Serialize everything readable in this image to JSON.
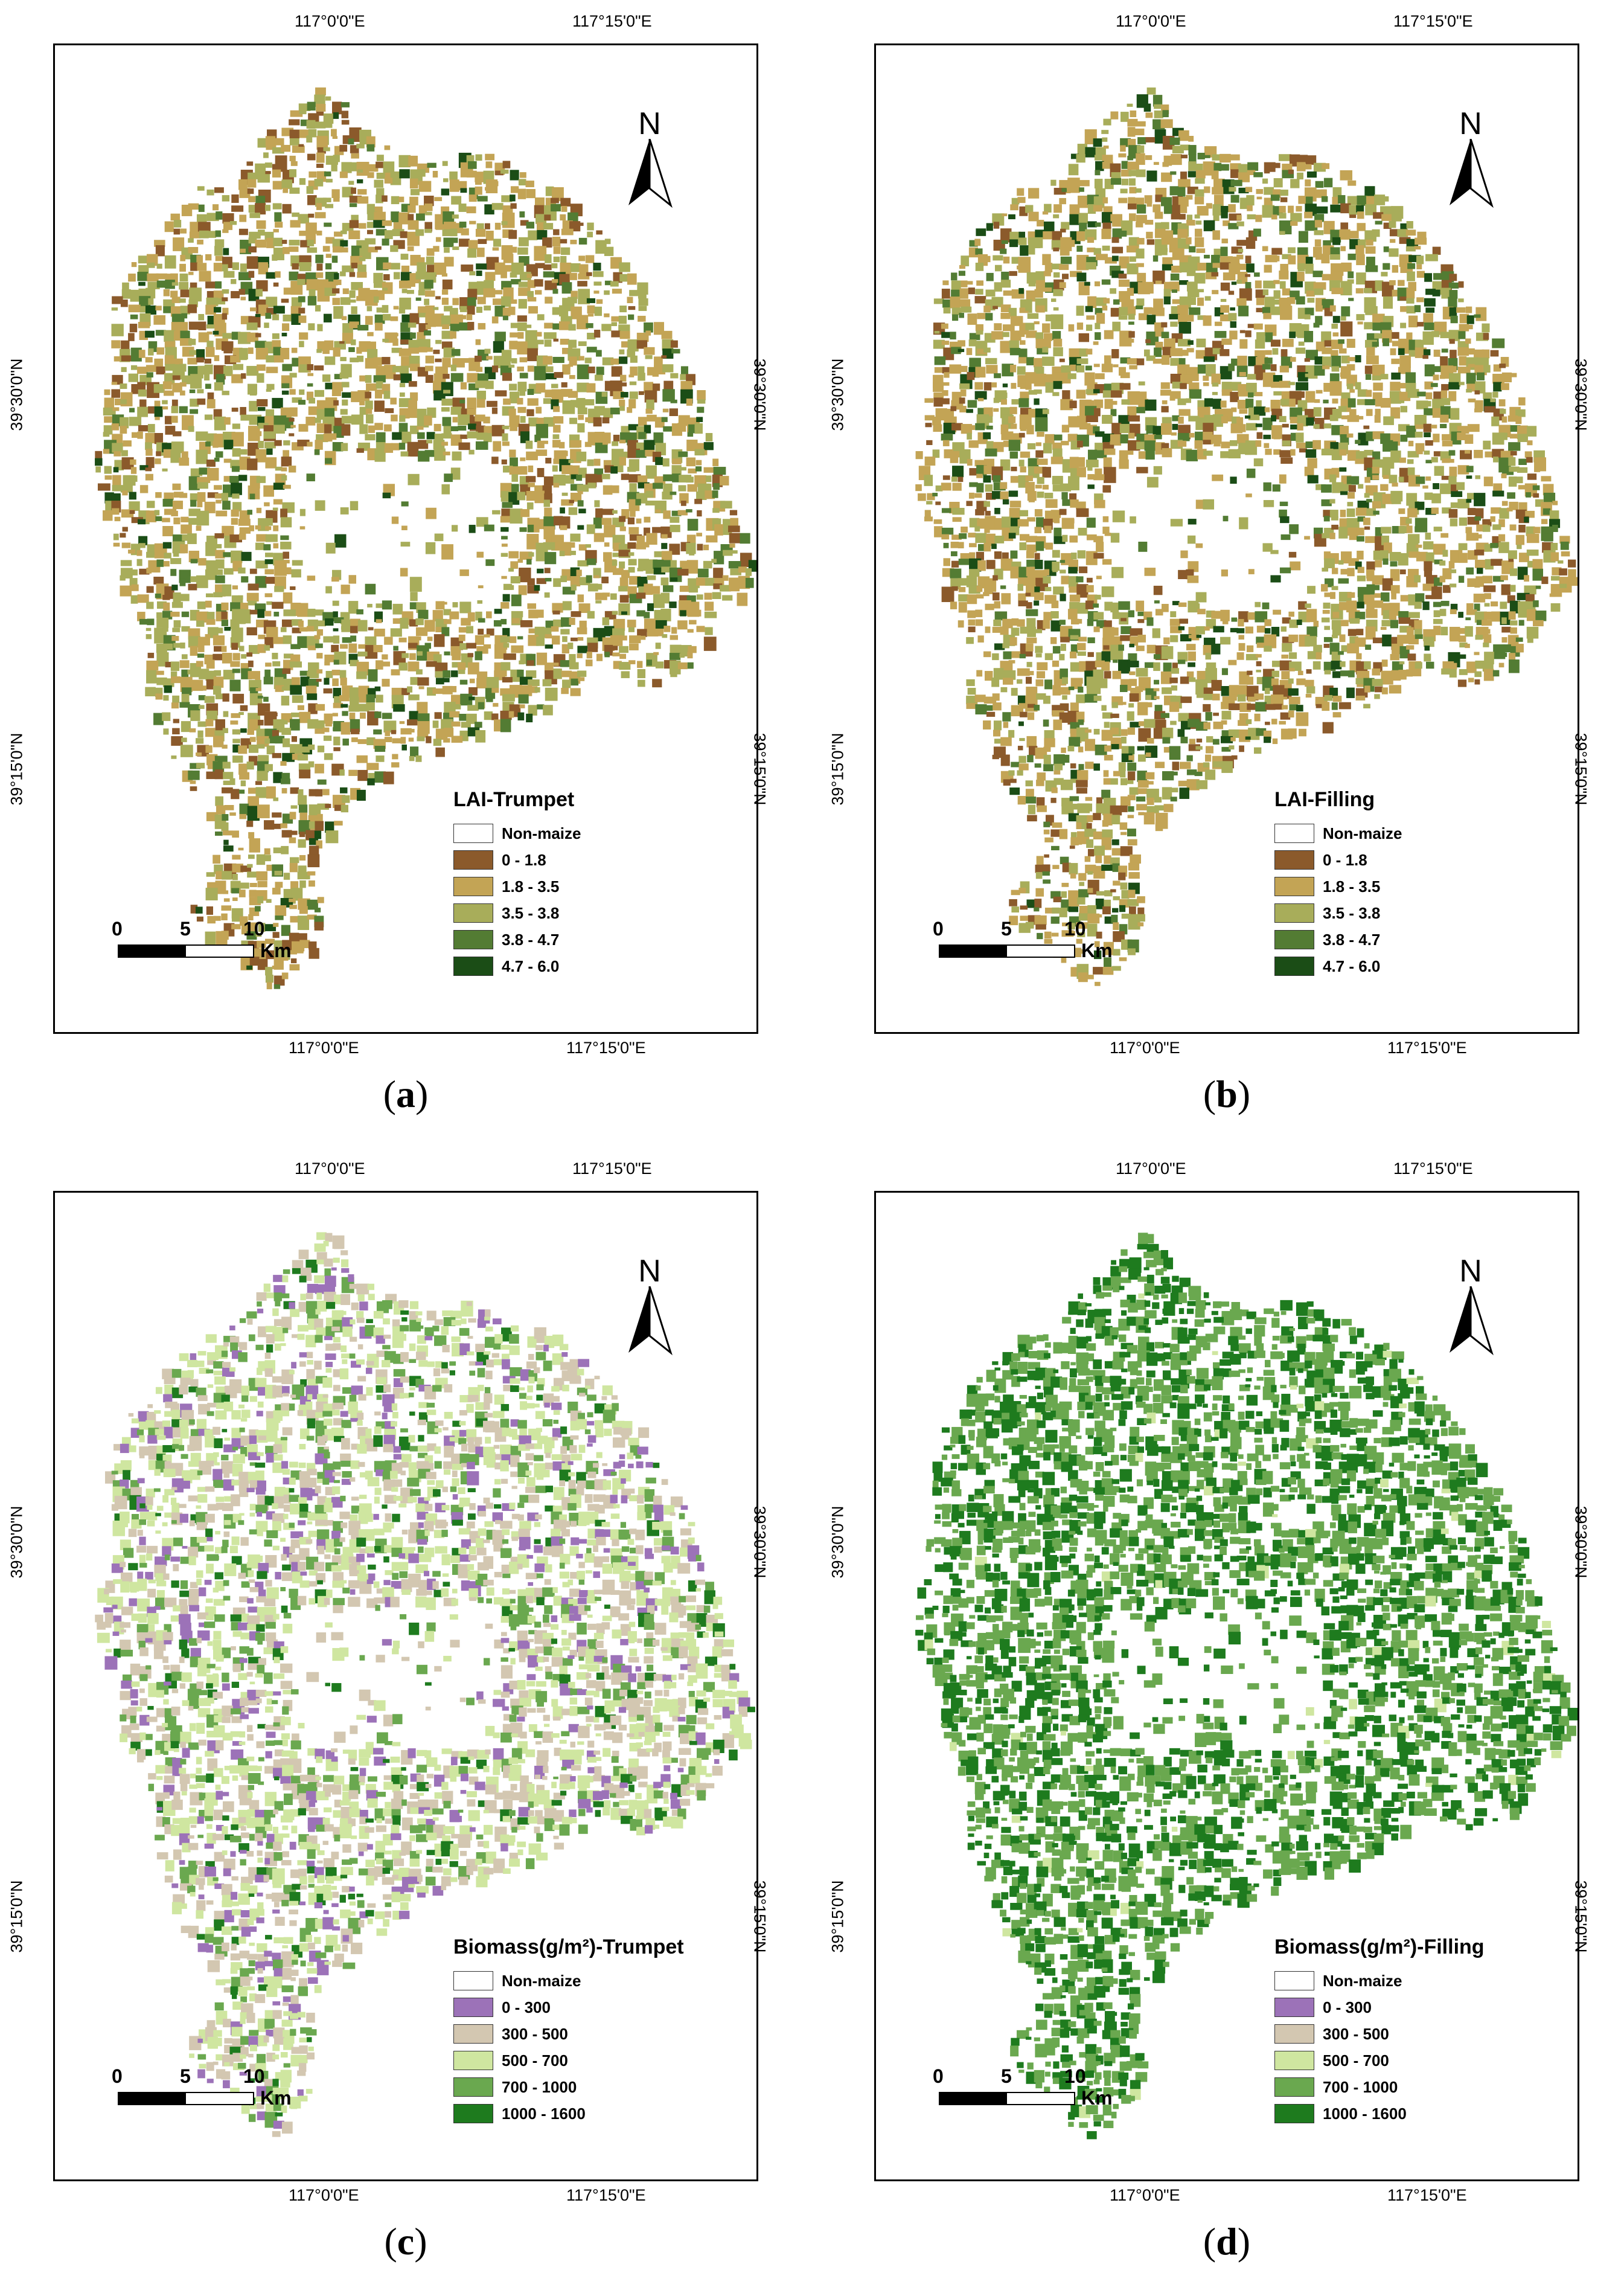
{
  "panels": [
    {
      "id": "a",
      "caption_letter": "a",
      "legend_title": "LAI-Trumpet",
      "legend": [
        {
          "label": "Non-maize",
          "color": "#ffffff"
        },
        {
          "label": "0 - 1.8",
          "color": "#8b5a2b"
        },
        {
          "label": "1.8 - 3.5",
          "color": "#c3a455"
        },
        {
          "label": "3.5 - 3.8",
          "color": "#a8ad5a"
        },
        {
          "label": "3.8 - 4.7",
          "color": "#537c33"
        },
        {
          "label": "4.7 - 6.0",
          "color": "#1b4d16"
        }
      ],
      "pixel_weights": [
        0.14,
        0.36,
        0.33,
        0.12,
        0.05
      ]
    },
    {
      "id": "b",
      "caption_letter": "b",
      "legend_title": "LAI-Filling",
      "legend": [
        {
          "label": "Non-maize",
          "color": "#ffffff"
        },
        {
          "label": "0 - 1.8",
          "color": "#8b5a2b"
        },
        {
          "label": "1.8 - 3.5",
          "color": "#c3a455"
        },
        {
          "label": "3.5 - 3.8",
          "color": "#a8ad5a"
        },
        {
          "label": "3.8 - 4.7",
          "color": "#537c33"
        },
        {
          "label": "4.7 - 6.0",
          "color": "#1b4d16"
        }
      ],
      "pixel_weights": [
        0.12,
        0.4,
        0.28,
        0.13,
        0.07
      ]
    },
    {
      "id": "c",
      "caption_letter": "c",
      "legend_title": "Biomass(g/m²)-Trumpet",
      "legend": [
        {
          "label": "Non-maize",
          "color": "#ffffff"
        },
        {
          "label": "0 - 300",
          "color": "#9c72b8"
        },
        {
          "label": "300 - 500",
          "color": "#d3c7b1"
        },
        {
          "label": "500 - 700",
          "color": "#cfe6a0"
        },
        {
          "label": "700 - 1000",
          "color": "#6aa84f"
        },
        {
          "label": "1000 - 1600",
          "color": "#1e7b1e"
        }
      ],
      "pixel_weights": [
        0.13,
        0.3,
        0.35,
        0.16,
        0.06
      ]
    },
    {
      "id": "d",
      "caption_letter": "d",
      "legend_title": "Biomass(g/m²)-Filling",
      "legend": [
        {
          "label": "Non-maize",
          "color": "#ffffff"
        },
        {
          "label": "0 - 300",
          "color": "#9c72b8"
        },
        {
          "label": "300 - 500",
          "color": "#d3c7b1"
        },
        {
          "label": "500 - 700",
          "color": "#cfe6a0"
        },
        {
          "label": "700 - 1000",
          "color": "#6aa84f"
        },
        {
          "label": "1000 - 1600",
          "color": "#1e7b1e"
        }
      ],
      "pixel_weights": [
        0.0,
        0.0,
        0.02,
        0.55,
        0.43
      ]
    }
  ],
  "graticule": {
    "lon_left": "117°0'0\"E",
    "lon_right": "117°15'0\"E",
    "lat_upper": "39°30'0\"N",
    "lat_lower": "39°15'0\"N"
  },
  "north_label": "N",
  "scalebar": {
    "ticks": [
      "0",
      "5",
      "10"
    ],
    "unit": "Km"
  },
  "caption_open": "(",
  "caption_close": ")"
}
